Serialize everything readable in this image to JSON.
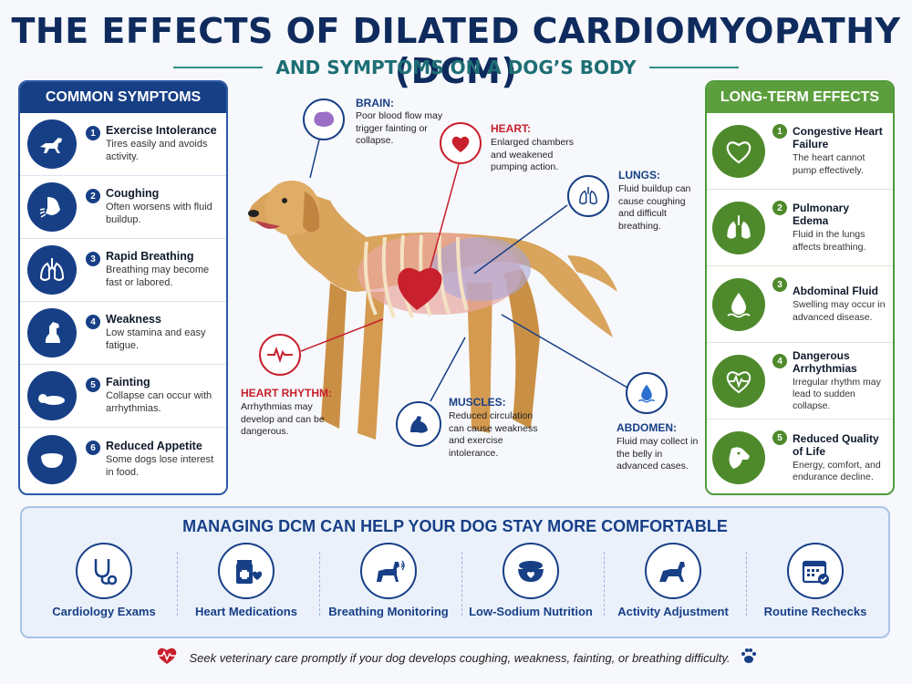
{
  "header": {
    "title": "THE EFFECTS OF DILATED CARDIOMYOPATHY (DCM)",
    "subtitle": "AND SYMPTOMS ON A DOG’S BODY"
  },
  "common_symptoms": {
    "heading": "COMMON SYMPTOMS",
    "items": [
      {
        "num": "1",
        "title": "Exercise Intolerance",
        "desc": "Tires easily and avoids activity.",
        "icon": "running-dog-icon"
      },
      {
        "num": "2",
        "title": "Coughing",
        "desc": "Often worsens with fluid buildup.",
        "icon": "coughing-dog-icon"
      },
      {
        "num": "3",
        "title": "Rapid Breathing",
        "desc": "Breathing may become fast or labored.",
        "icon": "lungs-icon"
      },
      {
        "num": "4",
        "title": "Weakness",
        "desc": "Low stamina and easy fatigue.",
        "icon": "sitting-dog-icon"
      },
      {
        "num": "5",
        "title": "Fainting",
        "desc": "Collapse can occur with arrhythmias.",
        "icon": "lying-dog-icon"
      },
      {
        "num": "6",
        "title": "Reduced Appetite",
        "desc": "Some dogs lose interest in food.",
        "icon": "food-bowl-icon"
      }
    ]
  },
  "long_term_effects": {
    "heading": "LONG-TERM EFFECTS",
    "items": [
      {
        "num": "1",
        "title": "Congestive Heart Failure",
        "desc": "The heart cannot pump effectively.",
        "icon": "heart-icon"
      },
      {
        "num": "2",
        "title": "Pulmonary Edema",
        "desc": "Fluid in the lungs affects breathing.",
        "icon": "lungs-icon"
      },
      {
        "num": "3",
        "title": "Abdominal Fluid",
        "desc": "Swelling may occur in advanced disease.",
        "icon": "droplet-icon"
      },
      {
        "num": "4",
        "title": "Dangerous Arrhythmias",
        "desc": "Irregular rhythm may lead to sudden collapse.",
        "icon": "heartbeat-icon"
      },
      {
        "num": "5",
        "title": "Reduced Quality of Life",
        "desc": "Energy, comfort, and endurance decline.",
        "icon": "dog-face-icon"
      }
    ]
  },
  "callouts": {
    "brain": {
      "title": "BRAIN:",
      "desc": "Poor blood flow may trigger fainting or collapse."
    },
    "heart": {
      "title": "HEART:",
      "desc": "Enlarged chambers and weakened pumping action."
    },
    "lungs": {
      "title": "LUNGS:",
      "desc": "Fluid buildup can cause coughing and difficult breathing."
    },
    "heart_rhythm": {
      "title": "HEART RHYTHM:",
      "desc": "Arrhythmias may develop and can be dangerous."
    },
    "muscles": {
      "title": "MUSCLES:",
      "desc": "Reduced circulation can cause weakness and exercise intolerance."
    },
    "abdomen": {
      "title": "ABDOMEN:",
      "desc": "Fluid may collect in the belly in advanced cases."
    }
  },
  "management": {
    "heading": "MANAGING DCM CAN HELP YOUR DOG STAY MORE COMFORTABLE",
    "items": [
      {
        "label": "Cardiology Exams",
        "icon": "stethoscope-icon"
      },
      {
        "label": "Heart Medications",
        "icon": "medication-icon"
      },
      {
        "label": "Breathing Monitoring",
        "icon": "dog-breathing-icon"
      },
      {
        "label": "Low-Sodium Nutrition",
        "icon": "food-bowl-icon"
      },
      {
        "label": "Activity Adjustment",
        "icon": "walking-dog-icon"
      },
      {
        "label": "Routine Rechecks",
        "icon": "calendar-icon"
      }
    ]
  },
  "footer": {
    "text": "Seek veterinary care promptly if your dog develops coughing, weakness, fainting, or breathing difficulty."
  },
  "colors": {
    "navy": "#173f86",
    "green": "#4e8a2c",
    "red": "#c8202d",
    "teal": "#1d6e74"
  }
}
